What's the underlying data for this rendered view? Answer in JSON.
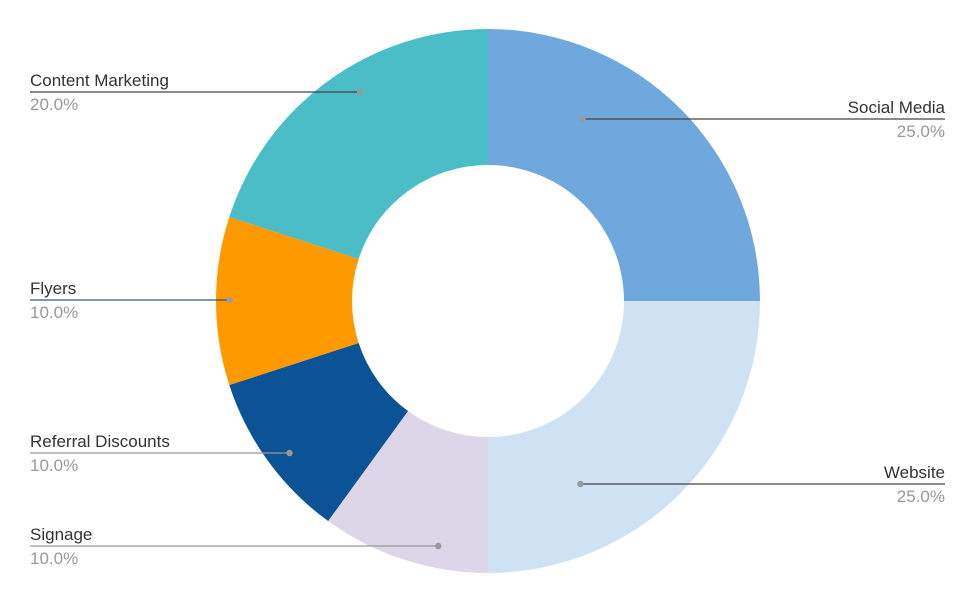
{
  "chart_data": {
    "type": "pie",
    "donut": true,
    "slices": [
      {
        "label": "Social Media",
        "value": 25.0,
        "display": "25.0%",
        "color": "#6fa8dc",
        "line_color": "#434343",
        "side": "right"
      },
      {
        "label": "Website",
        "value": 25.0,
        "display": "25.0%",
        "color": "#cfe2f3",
        "line_color": "#434343",
        "side": "right"
      },
      {
        "label": "Signage",
        "value": 10.0,
        "display": "10.0%",
        "color": "#dcd6e8",
        "line_color": "#999999",
        "side": "left"
      },
      {
        "label": "Referral Discounts",
        "value": 10.0,
        "display": "10.0%",
        "color": "#0b5394",
        "line_color": "#999999",
        "side": "left"
      },
      {
        "label": "Flyers",
        "value": 10.0,
        "display": "10.0%",
        "color": "#ff9900",
        "line_color": "#3d4f7a",
        "side": "left"
      },
      {
        "label": "Content Marketing",
        "value": 20.0,
        "display": "20.0%",
        "color": "#4bbdc6",
        "line_color": "#434343",
        "side": "left"
      }
    ],
    "start_angle_deg": 0,
    "direction": "clockwise",
    "legend": "none"
  }
}
